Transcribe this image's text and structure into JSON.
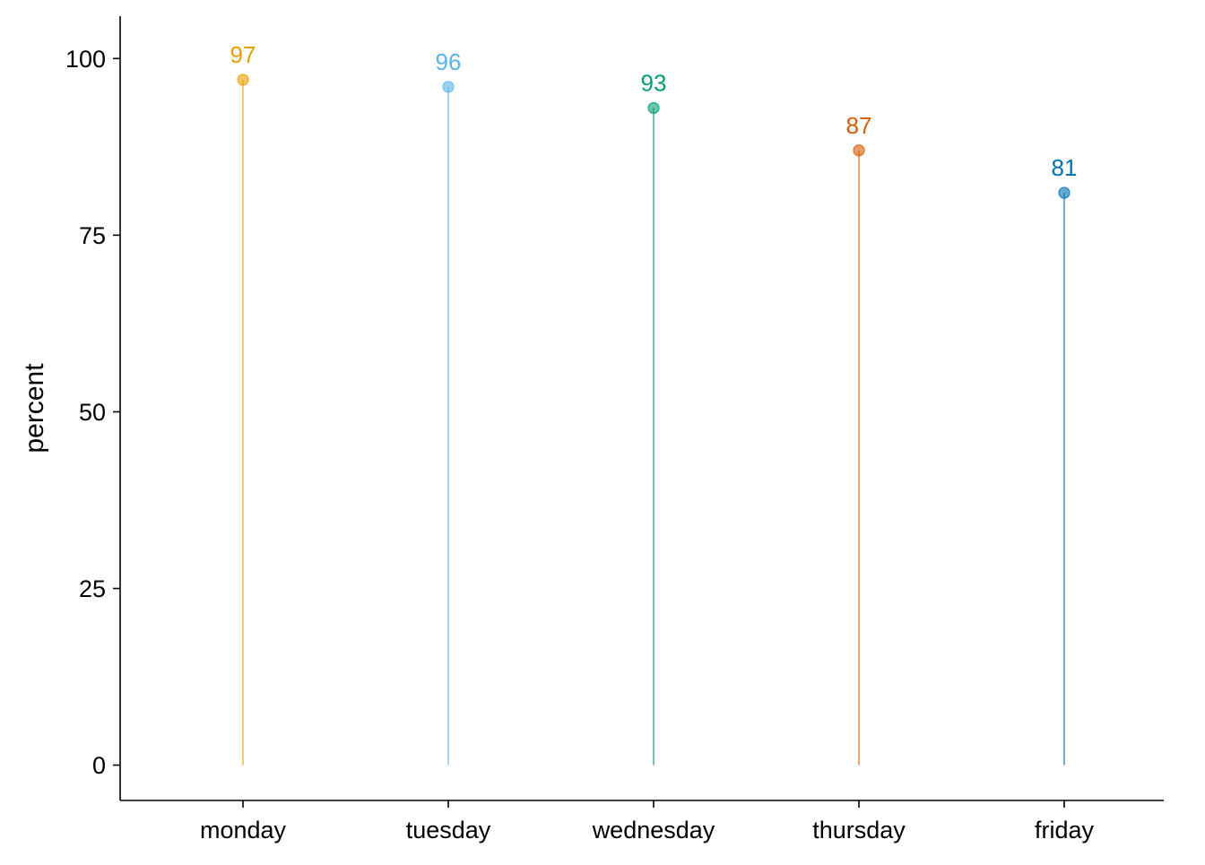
{
  "chart_data": {
    "type": "lollipop",
    "title": "",
    "xlabel": "",
    "ylabel": "percent",
    "ylim": [
      -5,
      106
    ],
    "yticks": [
      0,
      25,
      50,
      75,
      100
    ],
    "ytick_labels": [
      "0",
      "25",
      "50",
      "75",
      "100"
    ],
    "categories": [
      "monday",
      "tuesday",
      "wednesday",
      "thursday",
      "friday"
    ],
    "values": [
      97,
      96,
      93,
      87,
      81
    ],
    "value_labels": [
      "97",
      "96",
      "93",
      "87",
      "81"
    ],
    "colors": [
      "#E69F00",
      "#56B4E9",
      "#009E73",
      "#D55E00",
      "#0072B2"
    ],
    "grid": false,
    "legend": "none"
  }
}
